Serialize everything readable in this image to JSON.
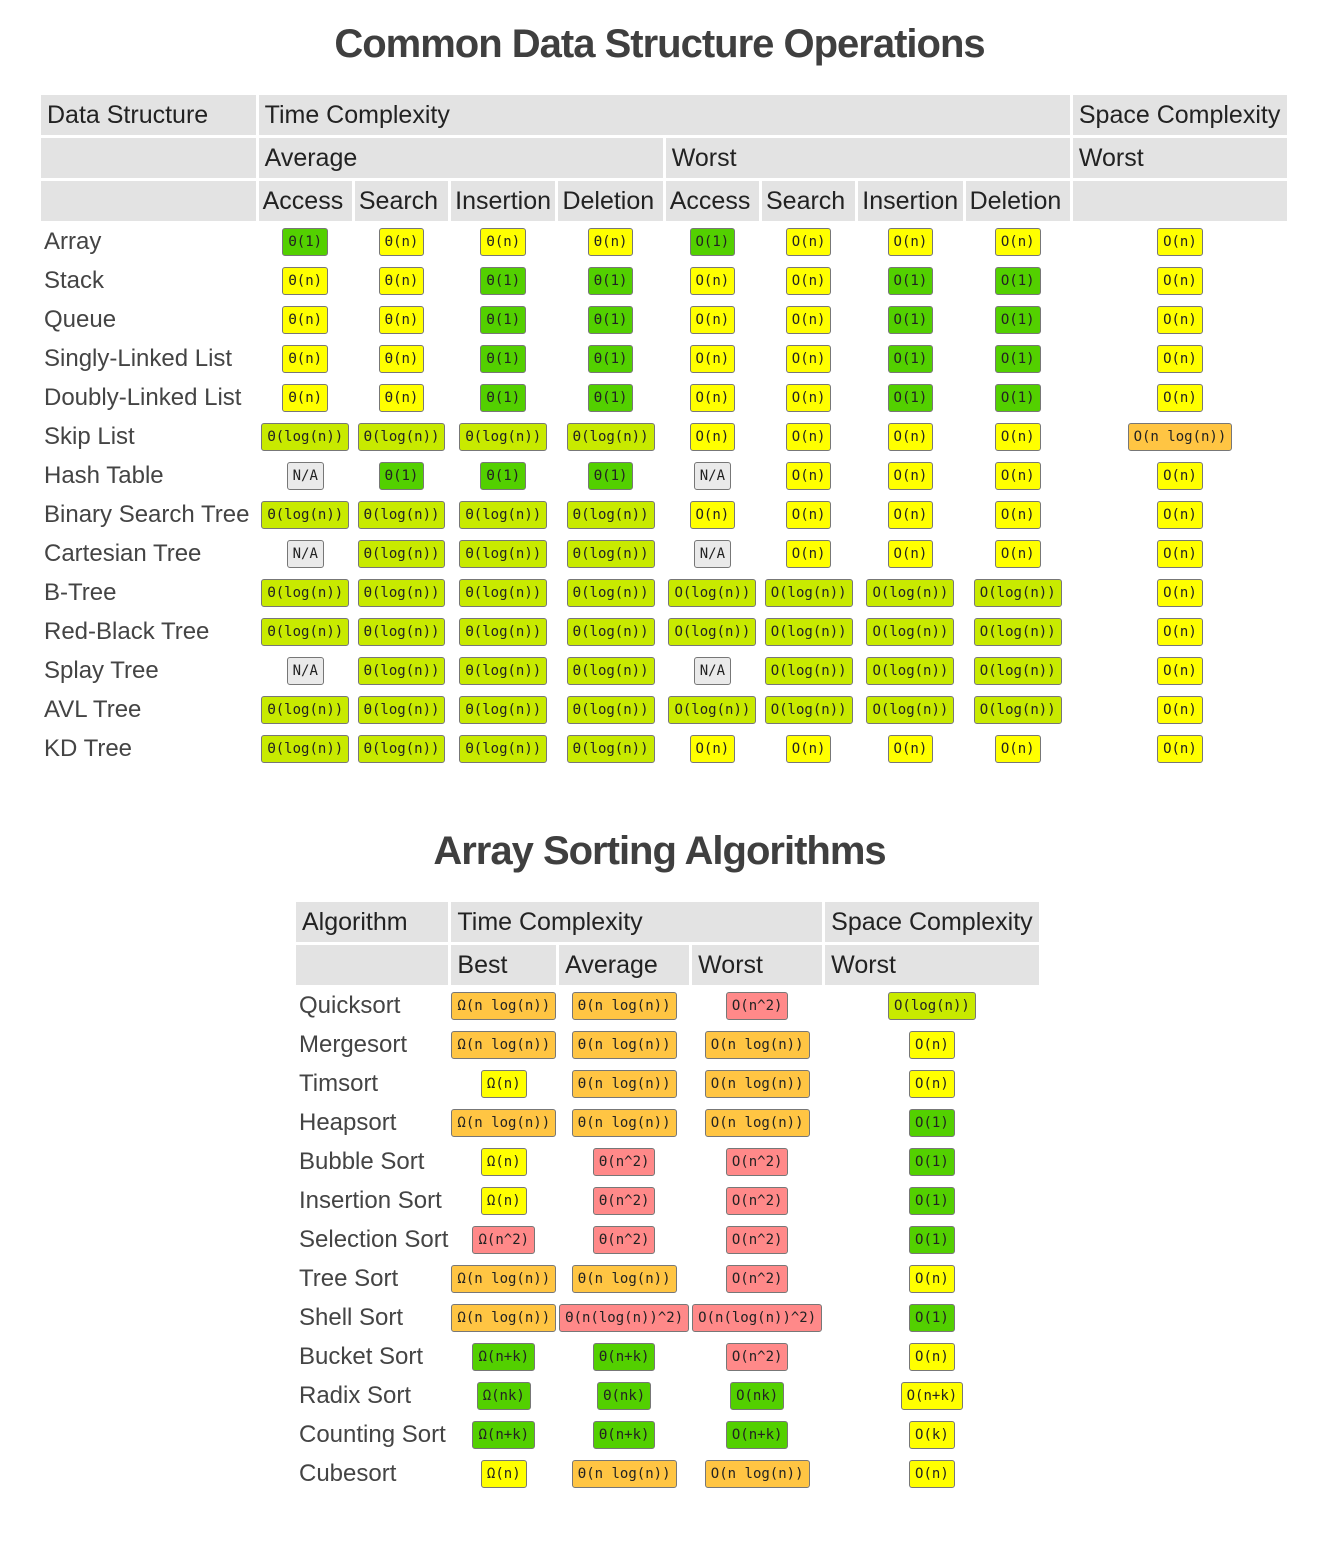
{
  "colors": {
    "c-green": "#53d000",
    "c-lime": "#c8ea00",
    "c-yellow": "#ffff00",
    "c-orange": "#ffc543",
    "c-red": "#ff8989",
    "c-gray": "#eaeaea",
    "header_bg": "#e3e3e3"
  },
  "ds": {
    "title": "Common Data Structure Operations",
    "head": {
      "data_structure": "Data Structure",
      "time_complexity": "Time Complexity",
      "space_complexity": "Space Complexity",
      "average": "Average",
      "worst": "Worst",
      "space_worst": "Worst",
      "cols": [
        "Access",
        "Search",
        "Insertion",
        "Deletion",
        "Access",
        "Search",
        "Insertion",
        "Deletion"
      ]
    },
    "rows": [
      {
        "name": "Array",
        "cells": [
          {
            "t": "Θ(1)",
            "c": "c-green"
          },
          {
            "t": "Θ(n)",
            "c": "c-yellow"
          },
          {
            "t": "Θ(n)",
            "c": "c-yellow"
          },
          {
            "t": "Θ(n)",
            "c": "c-yellow"
          },
          {
            "t": "O(1)",
            "c": "c-green"
          },
          {
            "t": "O(n)",
            "c": "c-yellow"
          },
          {
            "t": "O(n)",
            "c": "c-yellow"
          },
          {
            "t": "O(n)",
            "c": "c-yellow"
          },
          {
            "t": "O(n)",
            "c": "c-yellow"
          }
        ]
      },
      {
        "name": "Stack",
        "cells": [
          {
            "t": "Θ(n)",
            "c": "c-yellow"
          },
          {
            "t": "Θ(n)",
            "c": "c-yellow"
          },
          {
            "t": "Θ(1)",
            "c": "c-green"
          },
          {
            "t": "Θ(1)",
            "c": "c-green"
          },
          {
            "t": "O(n)",
            "c": "c-yellow"
          },
          {
            "t": "O(n)",
            "c": "c-yellow"
          },
          {
            "t": "O(1)",
            "c": "c-green"
          },
          {
            "t": "O(1)",
            "c": "c-green"
          },
          {
            "t": "O(n)",
            "c": "c-yellow"
          }
        ]
      },
      {
        "name": "Queue",
        "cells": [
          {
            "t": "Θ(n)",
            "c": "c-yellow"
          },
          {
            "t": "Θ(n)",
            "c": "c-yellow"
          },
          {
            "t": "Θ(1)",
            "c": "c-green"
          },
          {
            "t": "Θ(1)",
            "c": "c-green"
          },
          {
            "t": "O(n)",
            "c": "c-yellow"
          },
          {
            "t": "O(n)",
            "c": "c-yellow"
          },
          {
            "t": "O(1)",
            "c": "c-green"
          },
          {
            "t": "O(1)",
            "c": "c-green"
          },
          {
            "t": "O(n)",
            "c": "c-yellow"
          }
        ]
      },
      {
        "name": "Singly-Linked List",
        "cells": [
          {
            "t": "Θ(n)",
            "c": "c-yellow"
          },
          {
            "t": "Θ(n)",
            "c": "c-yellow"
          },
          {
            "t": "Θ(1)",
            "c": "c-green"
          },
          {
            "t": "Θ(1)",
            "c": "c-green"
          },
          {
            "t": "O(n)",
            "c": "c-yellow"
          },
          {
            "t": "O(n)",
            "c": "c-yellow"
          },
          {
            "t": "O(1)",
            "c": "c-green"
          },
          {
            "t": "O(1)",
            "c": "c-green"
          },
          {
            "t": "O(n)",
            "c": "c-yellow"
          }
        ]
      },
      {
        "name": "Doubly-Linked List",
        "cells": [
          {
            "t": "Θ(n)",
            "c": "c-yellow"
          },
          {
            "t": "Θ(n)",
            "c": "c-yellow"
          },
          {
            "t": "Θ(1)",
            "c": "c-green"
          },
          {
            "t": "Θ(1)",
            "c": "c-green"
          },
          {
            "t": "O(n)",
            "c": "c-yellow"
          },
          {
            "t": "O(n)",
            "c": "c-yellow"
          },
          {
            "t": "O(1)",
            "c": "c-green"
          },
          {
            "t": "O(1)",
            "c": "c-green"
          },
          {
            "t": "O(n)",
            "c": "c-yellow"
          }
        ]
      },
      {
        "name": "Skip List",
        "cells": [
          {
            "t": "Θ(log(n))",
            "c": "c-lime"
          },
          {
            "t": "Θ(log(n))",
            "c": "c-lime"
          },
          {
            "t": "Θ(log(n))",
            "c": "c-lime"
          },
          {
            "t": "Θ(log(n))",
            "c": "c-lime"
          },
          {
            "t": "O(n)",
            "c": "c-yellow"
          },
          {
            "t": "O(n)",
            "c": "c-yellow"
          },
          {
            "t": "O(n)",
            "c": "c-yellow"
          },
          {
            "t": "O(n)",
            "c": "c-yellow"
          },
          {
            "t": "O(n log(n))",
            "c": "c-orange"
          }
        ]
      },
      {
        "name": "Hash Table",
        "cells": [
          {
            "t": "N/A",
            "c": "c-gray"
          },
          {
            "t": "Θ(1)",
            "c": "c-green"
          },
          {
            "t": "Θ(1)",
            "c": "c-green"
          },
          {
            "t": "Θ(1)",
            "c": "c-green"
          },
          {
            "t": "N/A",
            "c": "c-gray"
          },
          {
            "t": "O(n)",
            "c": "c-yellow"
          },
          {
            "t": "O(n)",
            "c": "c-yellow"
          },
          {
            "t": "O(n)",
            "c": "c-yellow"
          },
          {
            "t": "O(n)",
            "c": "c-yellow"
          }
        ]
      },
      {
        "name": "Binary Search Tree",
        "cells": [
          {
            "t": "Θ(log(n))",
            "c": "c-lime"
          },
          {
            "t": "Θ(log(n))",
            "c": "c-lime"
          },
          {
            "t": "Θ(log(n))",
            "c": "c-lime"
          },
          {
            "t": "Θ(log(n))",
            "c": "c-lime"
          },
          {
            "t": "O(n)",
            "c": "c-yellow"
          },
          {
            "t": "O(n)",
            "c": "c-yellow"
          },
          {
            "t": "O(n)",
            "c": "c-yellow"
          },
          {
            "t": "O(n)",
            "c": "c-yellow"
          },
          {
            "t": "O(n)",
            "c": "c-yellow"
          }
        ]
      },
      {
        "name": "Cartesian Tree",
        "cells": [
          {
            "t": "N/A",
            "c": "c-gray"
          },
          {
            "t": "Θ(log(n))",
            "c": "c-lime"
          },
          {
            "t": "Θ(log(n))",
            "c": "c-lime"
          },
          {
            "t": "Θ(log(n))",
            "c": "c-lime"
          },
          {
            "t": "N/A",
            "c": "c-gray"
          },
          {
            "t": "O(n)",
            "c": "c-yellow"
          },
          {
            "t": "O(n)",
            "c": "c-yellow"
          },
          {
            "t": "O(n)",
            "c": "c-yellow"
          },
          {
            "t": "O(n)",
            "c": "c-yellow"
          }
        ]
      },
      {
        "name": "B-Tree",
        "cells": [
          {
            "t": "Θ(log(n))",
            "c": "c-lime"
          },
          {
            "t": "Θ(log(n))",
            "c": "c-lime"
          },
          {
            "t": "Θ(log(n))",
            "c": "c-lime"
          },
          {
            "t": "Θ(log(n))",
            "c": "c-lime"
          },
          {
            "t": "O(log(n))",
            "c": "c-lime"
          },
          {
            "t": "O(log(n))",
            "c": "c-lime"
          },
          {
            "t": "O(log(n))",
            "c": "c-lime"
          },
          {
            "t": "O(log(n))",
            "c": "c-lime"
          },
          {
            "t": "O(n)",
            "c": "c-yellow"
          }
        ]
      },
      {
        "name": "Red-Black Tree",
        "cells": [
          {
            "t": "Θ(log(n))",
            "c": "c-lime"
          },
          {
            "t": "Θ(log(n))",
            "c": "c-lime"
          },
          {
            "t": "Θ(log(n))",
            "c": "c-lime"
          },
          {
            "t": "Θ(log(n))",
            "c": "c-lime"
          },
          {
            "t": "O(log(n))",
            "c": "c-lime"
          },
          {
            "t": "O(log(n))",
            "c": "c-lime"
          },
          {
            "t": "O(log(n))",
            "c": "c-lime"
          },
          {
            "t": "O(log(n))",
            "c": "c-lime"
          },
          {
            "t": "O(n)",
            "c": "c-yellow"
          }
        ]
      },
      {
        "name": "Splay Tree",
        "cells": [
          {
            "t": "N/A",
            "c": "c-gray"
          },
          {
            "t": "Θ(log(n))",
            "c": "c-lime"
          },
          {
            "t": "Θ(log(n))",
            "c": "c-lime"
          },
          {
            "t": "Θ(log(n))",
            "c": "c-lime"
          },
          {
            "t": "N/A",
            "c": "c-gray"
          },
          {
            "t": "O(log(n))",
            "c": "c-lime"
          },
          {
            "t": "O(log(n))",
            "c": "c-lime"
          },
          {
            "t": "O(log(n))",
            "c": "c-lime"
          },
          {
            "t": "O(n)",
            "c": "c-yellow"
          }
        ]
      },
      {
        "name": "AVL Tree",
        "cells": [
          {
            "t": "Θ(log(n))",
            "c": "c-lime"
          },
          {
            "t": "Θ(log(n))",
            "c": "c-lime"
          },
          {
            "t": "Θ(log(n))",
            "c": "c-lime"
          },
          {
            "t": "Θ(log(n))",
            "c": "c-lime"
          },
          {
            "t": "O(log(n))",
            "c": "c-lime"
          },
          {
            "t": "O(log(n))",
            "c": "c-lime"
          },
          {
            "t": "O(log(n))",
            "c": "c-lime"
          },
          {
            "t": "O(log(n))",
            "c": "c-lime"
          },
          {
            "t": "O(n)",
            "c": "c-yellow"
          }
        ]
      },
      {
        "name": "KD Tree",
        "cells": [
          {
            "t": "Θ(log(n))",
            "c": "c-lime"
          },
          {
            "t": "Θ(log(n))",
            "c": "c-lime"
          },
          {
            "t": "Θ(log(n))",
            "c": "c-lime"
          },
          {
            "t": "Θ(log(n))",
            "c": "c-lime"
          },
          {
            "t": "O(n)",
            "c": "c-yellow"
          },
          {
            "t": "O(n)",
            "c": "c-yellow"
          },
          {
            "t": "O(n)",
            "c": "c-yellow"
          },
          {
            "t": "O(n)",
            "c": "c-yellow"
          },
          {
            "t": "O(n)",
            "c": "c-yellow"
          }
        ]
      }
    ]
  },
  "sort": {
    "title": "Array Sorting Algorithms",
    "head": {
      "algorithm": "Algorithm",
      "time_complexity": "Time Complexity",
      "space_complexity": "Space Complexity",
      "cols": [
        "Best",
        "Average",
        "Worst"
      ],
      "space_worst": "Worst"
    },
    "rows": [
      {
        "name": "Quicksort",
        "cells": [
          {
            "t": "Ω(n log(n))",
            "c": "c-orange"
          },
          {
            "t": "Θ(n log(n))",
            "c": "c-orange"
          },
          {
            "t": "O(n^2)",
            "c": "c-red"
          },
          {
            "t": "O(log(n))",
            "c": "c-lime"
          }
        ]
      },
      {
        "name": "Mergesort",
        "cells": [
          {
            "t": "Ω(n log(n))",
            "c": "c-orange"
          },
          {
            "t": "Θ(n log(n))",
            "c": "c-orange"
          },
          {
            "t": "O(n log(n))",
            "c": "c-orange"
          },
          {
            "t": "O(n)",
            "c": "c-yellow"
          }
        ]
      },
      {
        "name": "Timsort",
        "cells": [
          {
            "t": "Ω(n)",
            "c": "c-yellow"
          },
          {
            "t": "Θ(n log(n))",
            "c": "c-orange"
          },
          {
            "t": "O(n log(n))",
            "c": "c-orange"
          },
          {
            "t": "O(n)",
            "c": "c-yellow"
          }
        ]
      },
      {
        "name": "Heapsort",
        "cells": [
          {
            "t": "Ω(n log(n))",
            "c": "c-orange"
          },
          {
            "t": "Θ(n log(n))",
            "c": "c-orange"
          },
          {
            "t": "O(n log(n))",
            "c": "c-orange"
          },
          {
            "t": "O(1)",
            "c": "c-green"
          }
        ]
      },
      {
        "name": "Bubble Sort",
        "cells": [
          {
            "t": "Ω(n)",
            "c": "c-yellow"
          },
          {
            "t": "Θ(n^2)",
            "c": "c-red"
          },
          {
            "t": "O(n^2)",
            "c": "c-red"
          },
          {
            "t": "O(1)",
            "c": "c-green"
          }
        ]
      },
      {
        "name": "Insertion Sort",
        "cells": [
          {
            "t": "Ω(n)",
            "c": "c-yellow"
          },
          {
            "t": "Θ(n^2)",
            "c": "c-red"
          },
          {
            "t": "O(n^2)",
            "c": "c-red"
          },
          {
            "t": "O(1)",
            "c": "c-green"
          }
        ]
      },
      {
        "name": "Selection Sort",
        "cells": [
          {
            "t": "Ω(n^2)",
            "c": "c-red"
          },
          {
            "t": "Θ(n^2)",
            "c": "c-red"
          },
          {
            "t": "O(n^2)",
            "c": "c-red"
          },
          {
            "t": "O(1)",
            "c": "c-green"
          }
        ]
      },
      {
        "name": "Tree Sort",
        "cells": [
          {
            "t": "Ω(n log(n))",
            "c": "c-orange"
          },
          {
            "t": "Θ(n log(n))",
            "c": "c-orange"
          },
          {
            "t": "O(n^2)",
            "c": "c-red"
          },
          {
            "t": "O(n)",
            "c": "c-yellow"
          }
        ]
      },
      {
        "name": "Shell Sort",
        "cells": [
          {
            "t": "Ω(n log(n))",
            "c": "c-orange"
          },
          {
            "t": "Θ(n(log(n))^2)",
            "c": "c-red"
          },
          {
            "t": "O(n(log(n))^2)",
            "c": "c-red"
          },
          {
            "t": "O(1)",
            "c": "c-green"
          }
        ]
      },
      {
        "name": "Bucket Sort",
        "cells": [
          {
            "t": "Ω(n+k)",
            "c": "c-green"
          },
          {
            "t": "Θ(n+k)",
            "c": "c-green"
          },
          {
            "t": "O(n^2)",
            "c": "c-red"
          },
          {
            "t": "O(n)",
            "c": "c-yellow"
          }
        ]
      },
      {
        "name": "Radix Sort",
        "cells": [
          {
            "t": "Ω(nk)",
            "c": "c-green"
          },
          {
            "t": "Θ(nk)",
            "c": "c-green"
          },
          {
            "t": "O(nk)",
            "c": "c-green"
          },
          {
            "t": "O(n+k)",
            "c": "c-yellow"
          }
        ]
      },
      {
        "name": "Counting Sort",
        "cells": [
          {
            "t": "Ω(n+k)",
            "c": "c-green"
          },
          {
            "t": "Θ(n+k)",
            "c": "c-green"
          },
          {
            "t": "O(n+k)",
            "c": "c-green"
          },
          {
            "t": "O(k)",
            "c": "c-yellow"
          }
        ]
      },
      {
        "name": "Cubesort",
        "cells": [
          {
            "t": "Ω(n)",
            "c": "c-yellow"
          },
          {
            "t": "Θ(n log(n))",
            "c": "c-orange"
          },
          {
            "t": "O(n log(n))",
            "c": "c-orange"
          },
          {
            "t": "O(n)",
            "c": "c-yellow"
          }
        ]
      }
    ]
  }
}
